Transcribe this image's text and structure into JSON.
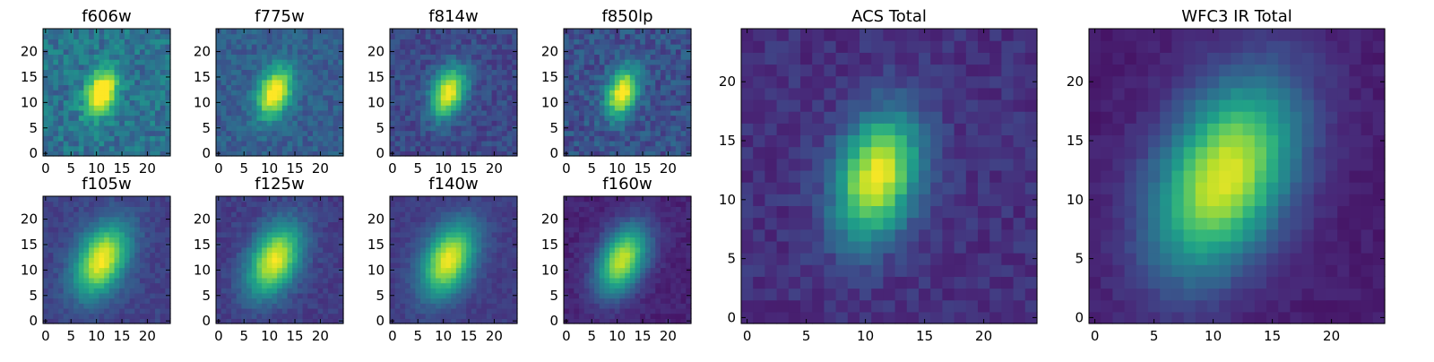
{
  "figure": {
    "colormap": "viridis",
    "colormap_stops": [
      "#440154",
      "#482878",
      "#3e4989",
      "#31688e",
      "#26828e",
      "#1f9e89",
      "#35b779",
      "#6ece58",
      "#b5de2b",
      "#fde725"
    ]
  },
  "chart_data": [
    {
      "type": "heatmap",
      "title": "f606w",
      "size": 25,
      "xticks": [
        "0",
        "5",
        "10",
        "15",
        "20"
      ],
      "yticks": [
        "0",
        "5",
        "10",
        "15",
        "20"
      ],
      "center": [
        11,
        12
      ],
      "sigma": [
        2.0,
        3.4
      ],
      "theta": -0.35,
      "peak": 0.78,
      "background": 0.38,
      "noise": 0.12,
      "seed": 11
    },
    {
      "type": "heatmap",
      "title": "f775w",
      "size": 25,
      "xticks": [
        "0",
        "5",
        "10",
        "15",
        "20"
      ],
      "yticks": [
        "0",
        "5",
        "10",
        "15",
        "20"
      ],
      "center": [
        11,
        12
      ],
      "sigma": [
        2.2,
        3.6
      ],
      "theta": -0.35,
      "peak": 0.78,
      "background": 0.3,
      "noise": 0.08,
      "seed": 23
    },
    {
      "type": "heatmap",
      "title": "f814w",
      "size": 25,
      "xticks": [
        "0",
        "5",
        "10",
        "15",
        "20"
      ],
      "yticks": [
        "0",
        "5",
        "10",
        "15",
        "20"
      ],
      "center": [
        11,
        12
      ],
      "sigma": [
        2.2,
        3.6
      ],
      "theta": -0.35,
      "peak": 0.78,
      "background": 0.22,
      "noise": 0.08,
      "seed": 37
    },
    {
      "type": "heatmap",
      "title": "f850lp",
      "size": 25,
      "xticks": [
        "0",
        "5",
        "10",
        "15",
        "20"
      ],
      "yticks": [
        "0",
        "5",
        "10",
        "15",
        "20"
      ],
      "center": [
        11,
        12
      ],
      "sigma": [
        2.0,
        3.4
      ],
      "theta": -0.3,
      "peak": 0.8,
      "background": 0.25,
      "noise": 0.1,
      "seed": 41
    },
    {
      "type": "heatmap",
      "title": "f105w",
      "size": 25,
      "xticks": [
        "0",
        "5",
        "10",
        "15",
        "20"
      ],
      "yticks": [
        "0",
        "5",
        "10",
        "15",
        "20"
      ],
      "center": [
        11,
        12
      ],
      "sigma": [
        3.2,
        5.2
      ],
      "theta": -0.45,
      "peak": 0.8,
      "background": 0.2,
      "noise": 0.05,
      "seed": 53
    },
    {
      "type": "heatmap",
      "title": "f125w",
      "size": 25,
      "xticks": [
        "0",
        "5",
        "10",
        "15",
        "20"
      ],
      "yticks": [
        "0",
        "5",
        "10",
        "15",
        "20"
      ],
      "center": [
        11,
        12
      ],
      "sigma": [
        3.2,
        5.2
      ],
      "theta": -0.45,
      "peak": 0.8,
      "background": 0.18,
      "noise": 0.05,
      "seed": 67
    },
    {
      "type": "heatmap",
      "title": "f140w",
      "size": 25,
      "xticks": [
        "0",
        "5",
        "10",
        "15",
        "20"
      ],
      "yticks": [
        "0",
        "5",
        "10",
        "15",
        "20"
      ],
      "center": [
        11,
        12
      ],
      "sigma": [
        3.2,
        5.2
      ],
      "theta": -0.45,
      "peak": 0.8,
      "background": 0.18,
      "noise": 0.04,
      "seed": 71
    },
    {
      "type": "heatmap",
      "title": "f160w",
      "size": 25,
      "xticks": [
        "0",
        "5",
        "10",
        "15",
        "20"
      ],
      "yticks": [
        "0",
        "5",
        "10",
        "15",
        "20"
      ],
      "center": [
        11,
        12
      ],
      "sigma": [
        3.0,
        5.0
      ],
      "theta": -0.45,
      "peak": 0.82,
      "background": 0.1,
      "noise": 0.04,
      "seed": 83
    },
    {
      "type": "heatmap",
      "title": "ACS Total",
      "size": 25,
      "xticks": [
        "0",
        "5",
        "10",
        "15",
        "20"
      ],
      "yticks": [
        "0",
        "5",
        "10",
        "15",
        "20"
      ],
      "center": [
        11,
        12
      ],
      "sigma": [
        2.3,
        3.8
      ],
      "theta": -0.3,
      "peak": 0.85,
      "background": 0.14,
      "noise": 0.06,
      "seed": 97
    },
    {
      "type": "heatmap",
      "title": "WFC3 IR Total",
      "size": 25,
      "xticks": [
        "0",
        "5",
        "10",
        "15",
        "20"
      ],
      "yticks": [
        "0",
        "5",
        "10",
        "15",
        "20"
      ],
      "center": [
        11,
        12
      ],
      "sigma": [
        3.6,
        6.0
      ],
      "theta": -0.45,
      "peak": 0.88,
      "background": 0.08,
      "noise": 0.03,
      "seed": 101
    }
  ]
}
